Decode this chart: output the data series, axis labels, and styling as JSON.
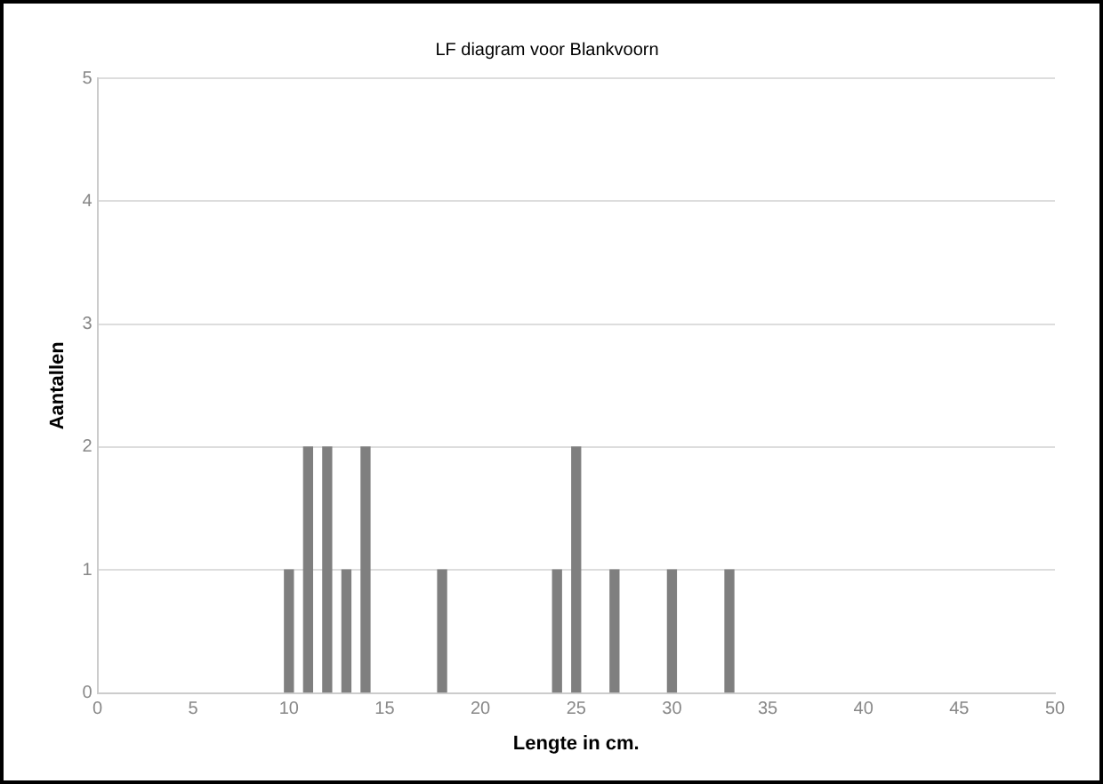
{
  "chart_data": {
    "type": "bar",
    "title": "LF diagram voor Blankvoorn",
    "xlabel": "Lengte in cm.",
    "ylabel": "Aantallen",
    "x": [
      10,
      11,
      12,
      13,
      14,
      18,
      24,
      25,
      27,
      30,
      33
    ],
    "values": [
      1,
      2,
      2,
      1,
      2,
      1,
      1,
      2,
      1,
      1,
      1
    ],
    "color": "#7f7f7f",
    "xlim": [
      0,
      50
    ],
    "xticks": [
      0,
      5,
      10,
      15,
      20,
      25,
      30,
      35,
      40,
      45,
      50
    ],
    "ylim": [
      0,
      5
    ],
    "yticks": [
      0,
      1,
      2,
      3,
      4,
      5
    ],
    "grid": "y"
  }
}
